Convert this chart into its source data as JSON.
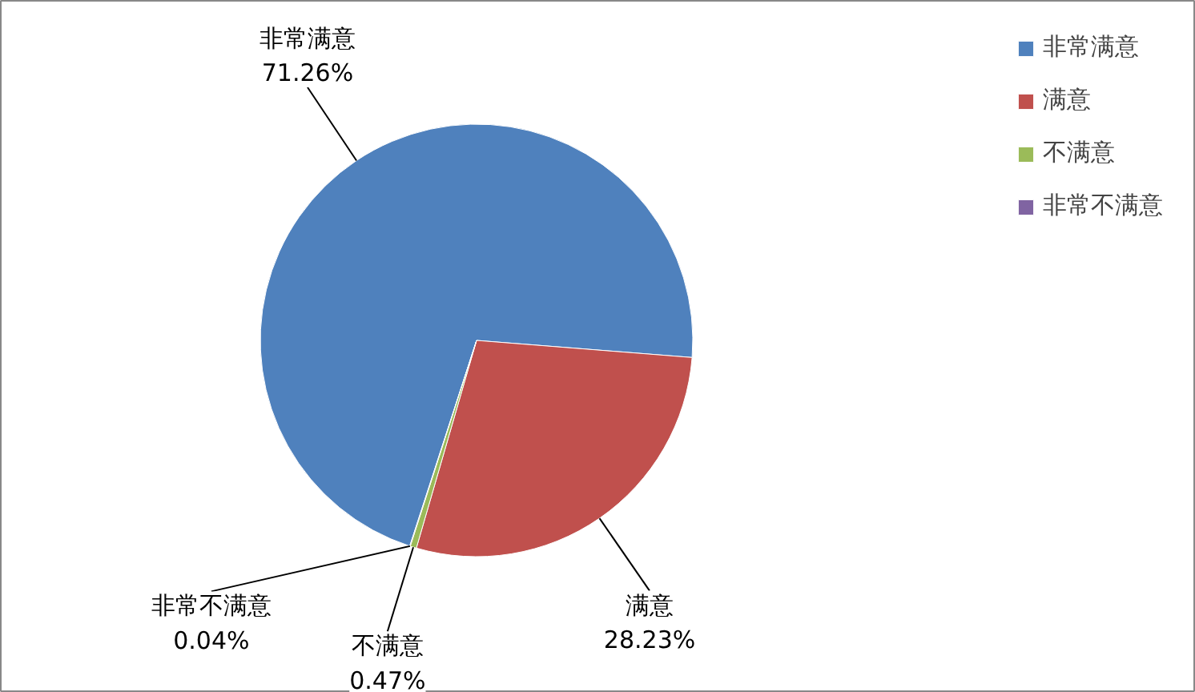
{
  "chart_data": {
    "type": "pie",
    "categories": [
      "非常满意",
      "满意",
      "不满意",
      "非常不满意"
    ],
    "values": [
      71.26,
      28.23,
      0.47,
      0.04
    ],
    "colors": [
      "#4f81bd",
      "#c0504d",
      "#9bbb59",
      "#8064a2"
    ],
    "value_labels": [
      "71.26%",
      "28.23%",
      "0.47%",
      "0.04%"
    ],
    "legend": "right"
  }
}
